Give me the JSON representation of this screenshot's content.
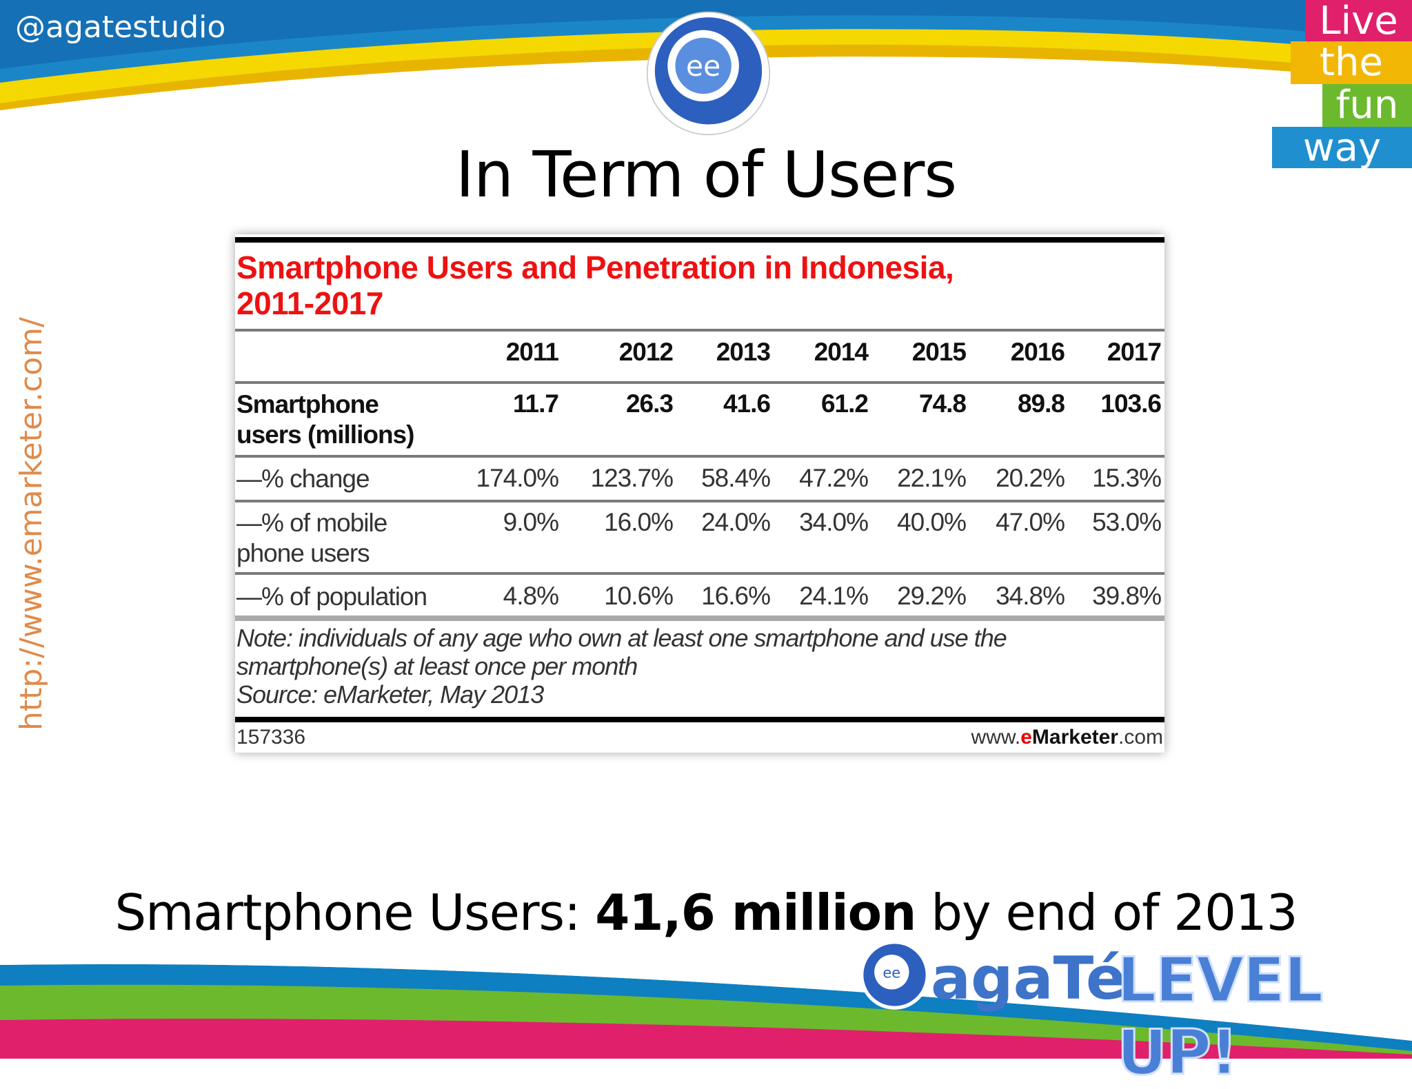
{
  "header": {
    "handle": "@agatestudio",
    "title": "In Term of Users",
    "tagline": [
      "Live",
      "the",
      "fun",
      "way"
    ]
  },
  "side_url": "http://www.emarketer.com/",
  "table": {
    "title_line1": "Smartphone Users and Penetration in Indonesia,",
    "title_line2": "2011-2017",
    "years": [
      "2011",
      "2012",
      "2013",
      "2014",
      "2015",
      "2016",
      "2017"
    ],
    "rows": [
      {
        "label": [
          "Smartphone",
          "users (millions)"
        ],
        "values": [
          "11.7",
          "26.3",
          "41.6",
          "61.2",
          "74.8",
          "89.8",
          "103.6"
        ]
      },
      {
        "label": [
          "—% change"
        ],
        "values": [
          "174.0%",
          "123.7%",
          "58.4%",
          "47.2%",
          "22.1%",
          "20.2%",
          "15.3%"
        ]
      },
      {
        "label": [
          "—% of mobile",
          "phone users"
        ],
        "values": [
          "9.0%",
          "16.0%",
          "24.0%",
          "34.0%",
          "40.0%",
          "47.0%",
          "53.0%"
        ]
      },
      {
        "label": [
          "—% of population"
        ],
        "values": [
          "4.8%",
          "10.6%",
          "16.6%",
          "24.1%",
          "29.2%",
          "34.8%",
          "39.8%"
        ]
      }
    ],
    "note_line1": "Note: individuals of any age who own at least one smartphone and use the",
    "note_line2": "smartphone(s) at least once per month",
    "source": "Source: eMarketer, May 2013",
    "chart_id": "157336",
    "site_pre": "www.",
    "site_e": "e",
    "site_main": "Marketer",
    "site_post": ".com"
  },
  "footer": {
    "text_pre": "Smartphone Users: ",
    "text_bold": "41,6 million",
    "text_post": " by end of 2013",
    "logo_word": "agaTé",
    "level_up": "LEVEL UP!"
  },
  "colors": {
    "title_red": "#ee1111",
    "brand_blue": "#3d73c8",
    "yellow": "#f5d800",
    "green": "#6cb92e",
    "pink": "#e0206a"
  }
}
